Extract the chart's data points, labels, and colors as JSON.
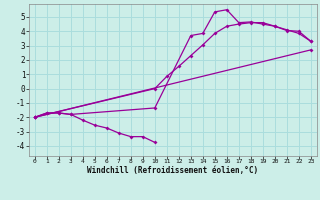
{
  "xlabel": "Windchill (Refroidissement éolien,°C)",
  "bg_color": "#cceee8",
  "line_color": "#990099",
  "grid_color": "#aadddd",
  "xlim": [
    -0.5,
    23.5
  ],
  "ylim": [
    -4.7,
    5.9
  ],
  "xticks": [
    0,
    1,
    2,
    3,
    4,
    5,
    6,
    7,
    8,
    9,
    10,
    11,
    12,
    13,
    14,
    15,
    16,
    17,
    18,
    19,
    20,
    21,
    22,
    23
  ],
  "yticks": [
    -4,
    -3,
    -2,
    -1,
    0,
    1,
    2,
    3,
    4,
    5
  ],
  "line1_x": [
    0,
    1,
    2,
    3,
    4,
    5,
    6,
    7,
    8,
    9,
    10
  ],
  "line1_y": [
    -2.0,
    -1.7,
    -1.7,
    -1.8,
    -2.2,
    -2.55,
    -2.75,
    -3.1,
    -3.35,
    -3.35,
    -3.75
  ],
  "line2_x": [
    0,
    1,
    2,
    3,
    10,
    13,
    14,
    15,
    16,
    17,
    18,
    19,
    20,
    21,
    22,
    23
  ],
  "line2_y": [
    -2.0,
    -1.7,
    -1.7,
    -1.8,
    -1.35,
    3.7,
    3.85,
    5.35,
    5.5,
    4.6,
    4.65,
    4.5,
    4.35,
    4.05,
    4.0,
    3.3
  ],
  "line3_x": [
    0,
    10,
    11,
    12,
    13,
    14,
    15,
    16,
    17,
    18,
    19,
    20,
    21,
    22,
    23
  ],
  "line3_y": [
    -2.0,
    0.0,
    0.85,
    1.55,
    2.3,
    3.05,
    3.85,
    4.35,
    4.5,
    4.6,
    4.6,
    4.35,
    4.1,
    3.85,
    3.3
  ],
  "line4_x": [
    0,
    23
  ],
  "line4_y": [
    -2.0,
    2.7
  ]
}
